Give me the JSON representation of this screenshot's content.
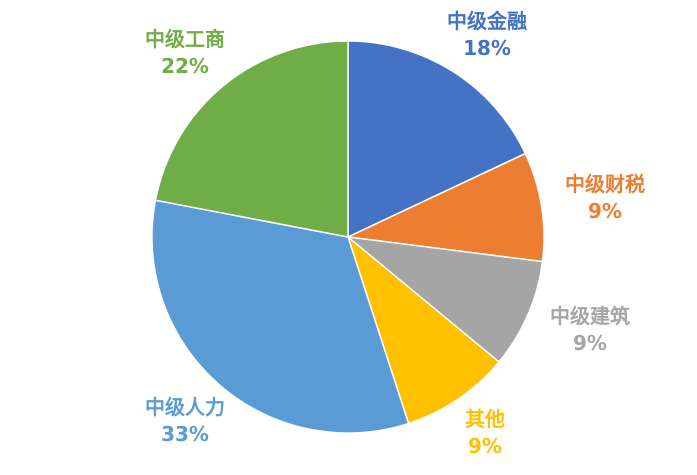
{
  "chart_data": {
    "type": "pie",
    "start_angle": "12 o'clock",
    "direction": "clockwise",
    "legend": "none",
    "slices": [
      {
        "label": "中级金融",
        "value": 18,
        "pct_label": "18%",
        "color": "#4472C4"
      },
      {
        "label": "中级财税",
        "value": 9,
        "pct_label": "9%",
        "color": "#ED7D31"
      },
      {
        "label": "中级建筑",
        "value": 9,
        "pct_label": "9%",
        "color": "#A5A5A5"
      },
      {
        "label": "其他",
        "value": 9,
        "pct_label": "9%",
        "color": "#FFC000"
      },
      {
        "label": "中级人力",
        "value": 33,
        "pct_label": "33%",
        "color": "#5B9BD5"
      },
      {
        "label": "中级工商",
        "value": 22,
        "pct_label": "22%",
        "color": "#70AD47"
      }
    ]
  }
}
